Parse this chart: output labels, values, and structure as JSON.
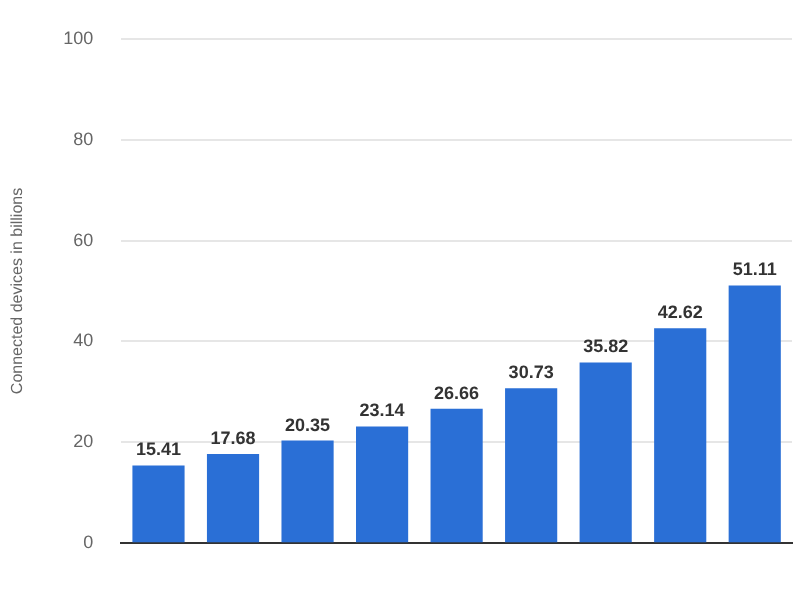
{
  "chart_data": {
    "type": "bar",
    "ylabel": "Connected devices in billions",
    "categories": [
      null,
      null,
      null,
      null,
      null,
      null,
      null,
      null,
      null
    ],
    "values": [
      15.41,
      17.68,
      20.35,
      23.14,
      26.66,
      30.73,
      35.82,
      42.62,
      51.11
    ],
    "color": "#2a6fd6",
    "data_labels": true,
    "ylim": [
      0,
      100
    ],
    "yticks": [
      0,
      20,
      40,
      60,
      80,
      100
    ],
    "grid": "y"
  }
}
